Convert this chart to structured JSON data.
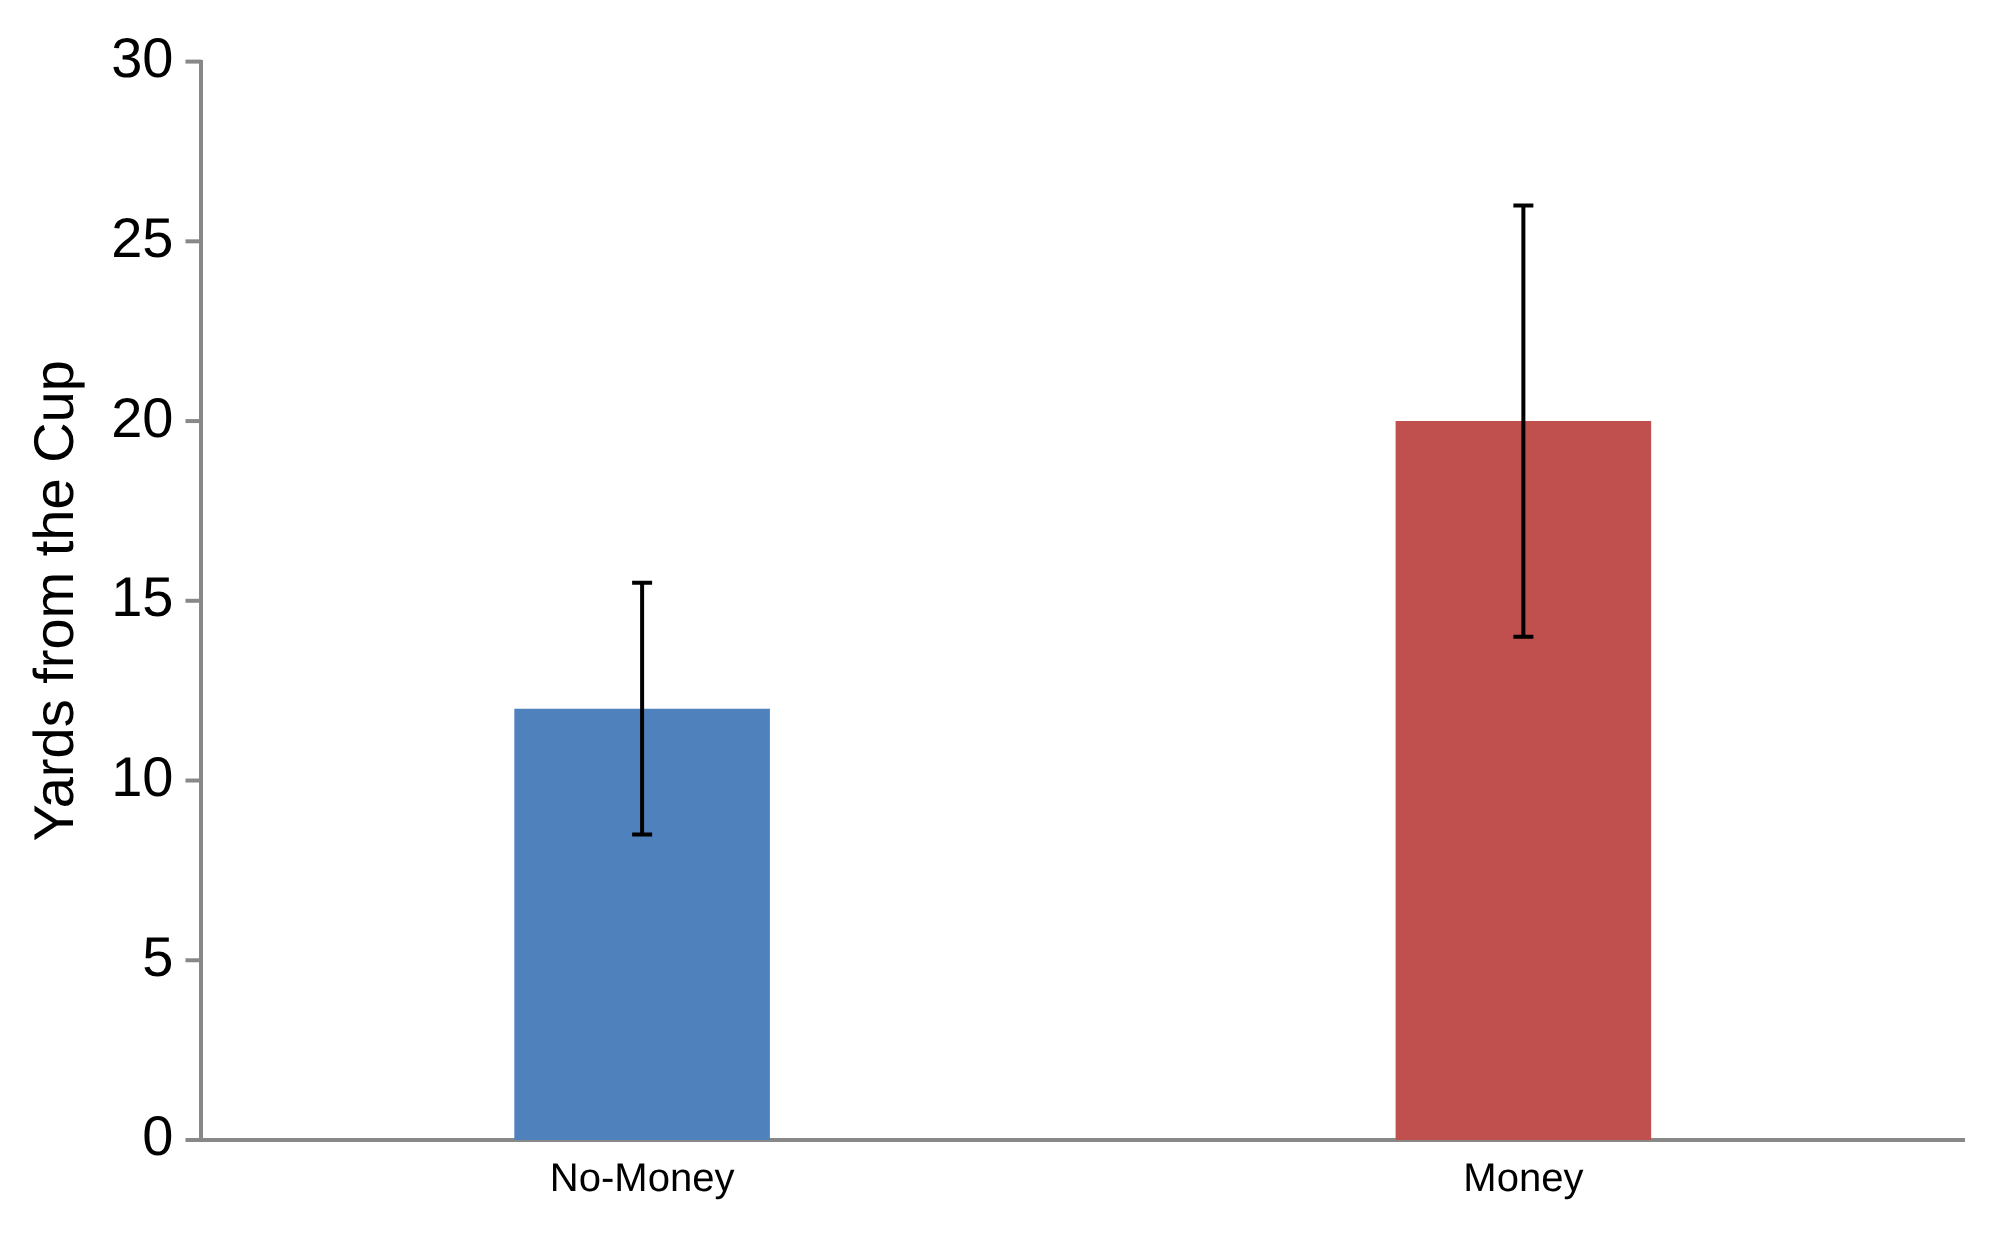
{
  "chart_data": {
    "type": "bar",
    "ylabel": "Yards from the Cup",
    "categories": [
      "No-Money",
      "Money"
    ],
    "values": [
      12,
      20
    ],
    "colors": [
      "#4f81bd",
      "#c0504d"
    ],
    "errors": [
      3.5,
      6
    ],
    "ylim": [
      0,
      30
    ],
    "yticks": [
      0,
      5,
      10,
      15,
      20,
      25,
      30
    ],
    "grid": false,
    "legend": false
  }
}
